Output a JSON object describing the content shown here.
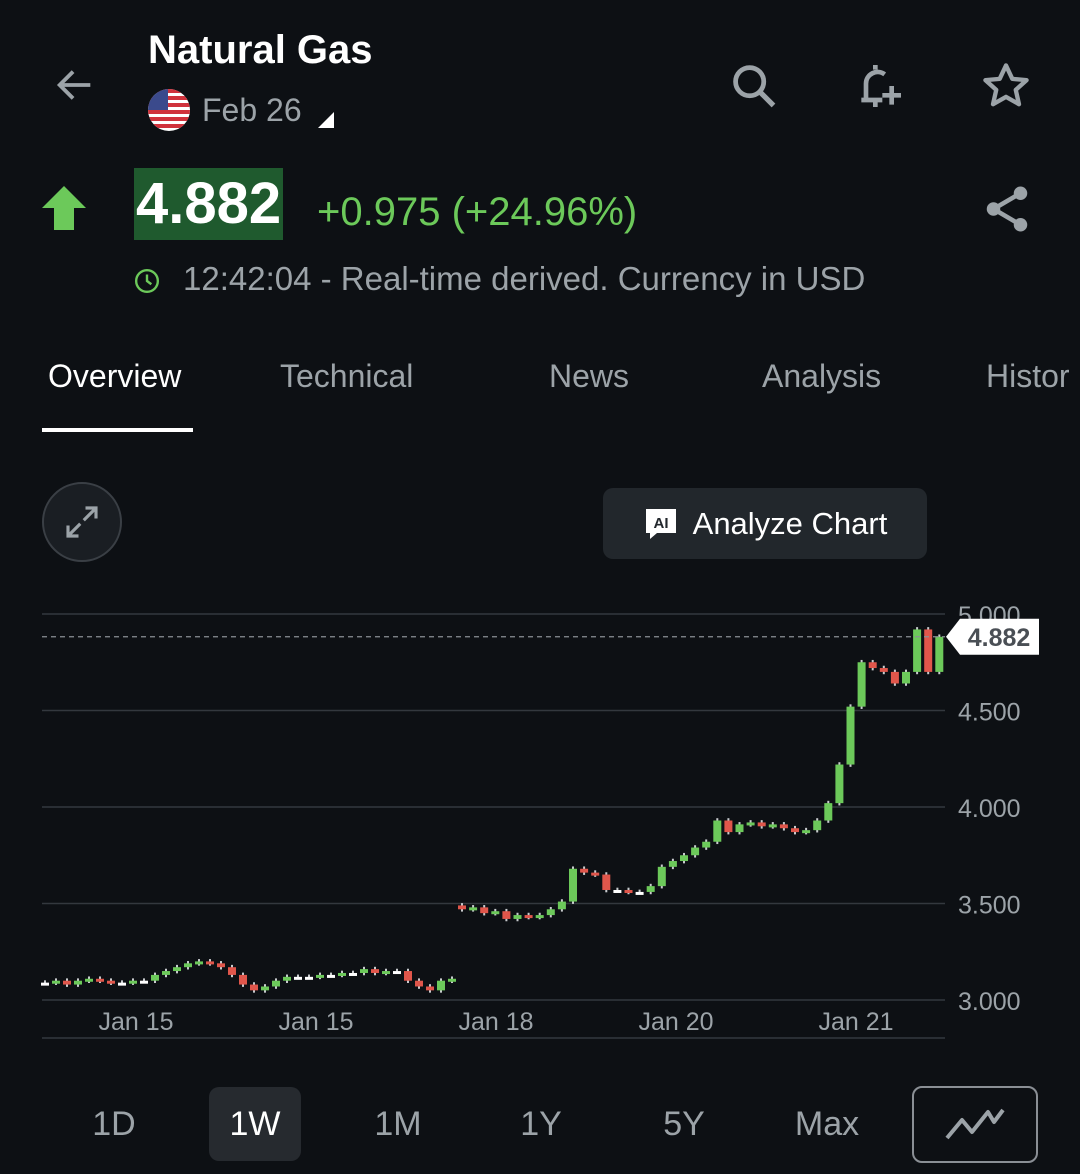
{
  "header": {
    "title": "Natural Gas",
    "contract": "Feb 26",
    "icons": [
      "arrow-left-icon",
      "search-icon",
      "bell-plus-icon",
      "star-icon",
      "share-icon"
    ]
  },
  "quote": {
    "price": "4.882",
    "change": "+0.975 (+24.96%)",
    "direction": "up",
    "status": "12:42:04 - Real-time derived. Currency in USD",
    "up_color": "#6cc95a",
    "down_color": "#e0564b"
  },
  "tabs": [
    {
      "label": "Overview",
      "active": true
    },
    {
      "label": "Technical"
    },
    {
      "label": "News"
    },
    {
      "label": "Analysis"
    },
    {
      "label": "Histor"
    }
  ],
  "chart_toolbar": {
    "analyze_label": "Analyze Chart",
    "ai_badge": "AI"
  },
  "chart_data": {
    "type": "candlestick",
    "y_ticks": [
      "5.000",
      "4.500",
      "4.000",
      "3.500",
      "3.000"
    ],
    "ylim": [
      3.0,
      5.0
    ],
    "x_ticks": [
      "Jan 15",
      "Jan 15",
      "Jan 18",
      "Jan 20",
      "Jan 21"
    ],
    "last_price_label": "4.882",
    "last_price": 4.882,
    "grid": true,
    "sessions": [
      {
        "close": [
          3.09,
          3.1,
          3.08,
          3.1,
          3.11,
          3.1,
          3.09,
          3.09,
          3.1,
          3.1,
          3.13,
          3.15,
          3.17,
          3.19,
          3.2,
          3.19,
          3.17,
          3.13,
          3.08,
          3.05,
          3.07,
          3.1,
          3.12,
          3.12,
          3.12,
          3.13,
          3.13,
          3.14,
          3.14,
          3.16,
          3.14,
          3.15,
          3.15,
          3.1,
          3.07,
          3.05,
          3.1,
          3.11
        ]
      },
      {
        "close": [
          3.47,
          3.48,
          3.45,
          3.46,
          3.42,
          3.44,
          3.43,
          3.44,
          3.47,
          3.51,
          3.68,
          3.66,
          3.65,
          3.57,
          3.57,
          3.56,
          3.56,
          3.59,
          3.69,
          3.72,
          3.75,
          3.79,
          3.82,
          3.93,
          3.87,
          3.91,
          3.92,
          3.9,
          3.91,
          3.89,
          3.87,
          3.88,
          3.93,
          4.02,
          4.22,
          4.52,
          4.75,
          4.72,
          4.7,
          4.64,
          4.7,
          4.92,
          4.7,
          4.882
        ]
      }
    ]
  },
  "ranges": [
    {
      "label": "1D"
    },
    {
      "label": "1W",
      "active": true
    },
    {
      "label": "1M"
    },
    {
      "label": "1Y"
    },
    {
      "label": "5Y"
    },
    {
      "label": "Max"
    }
  ],
  "chart_type_icon": "line-chart-icon"
}
